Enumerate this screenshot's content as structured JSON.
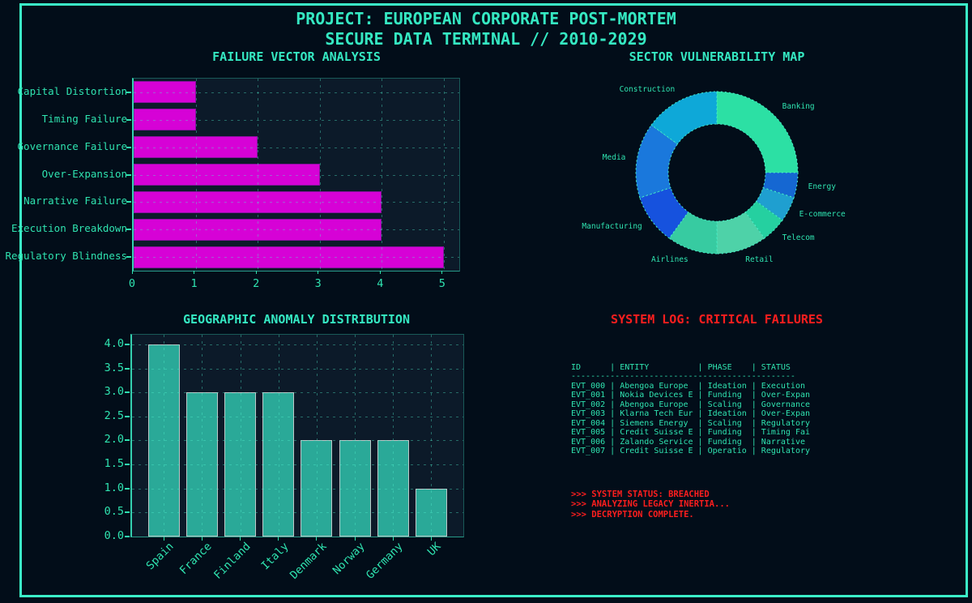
{
  "header": {
    "title_line1": "PROJECT: EUROPEAN CORPORATE POST-MORTEM",
    "title_line2": "SECURE DATA TERMINAL // 2010-2029"
  },
  "colors": {
    "background": "#020d19",
    "plot_background": "#0c1a29",
    "frame_teal": "#3bf0c8",
    "text_teal": "#2fe3b0",
    "title_teal": "#35e8c2",
    "alert_red": "#ff1e1e",
    "failure_bar_fill": "#d602d6",
    "failure_bar_edge": "#8a10a0",
    "geo_bar_fill": "#2aa998",
    "geo_bar_edge": "#bcc8c8",
    "wedge_edge": "#46f0c8"
  },
  "chart_data": [
    {
      "type": "bar",
      "orientation": "horizontal",
      "title": "FAILURE VECTOR ANALYSIS",
      "categories": [
        "Capital Distortion",
        "Timing Failure",
        "Governance Failure",
        "Over-Expansion",
        "Narrative Failure",
        "Execution Breakdown",
        "Regulatory Blindness"
      ],
      "values": [
        1,
        1,
        2,
        3,
        4,
        4,
        5
      ],
      "xticks": [
        0,
        1,
        2,
        3,
        4,
        5
      ],
      "xlim": [
        0,
        5.25
      ],
      "grid": true,
      "legend": "none"
    },
    {
      "type": "pie",
      "donut": true,
      "title": "SECTOR VULNERABILITY MAP",
      "labels": [
        "Banking",
        "Energy",
        "E-commerce",
        "Telecom",
        "Retail",
        "Airlines",
        "Manufacturing",
        "Media",
        "Construction"
      ],
      "values": [
        5,
        1,
        1,
        1,
        2,
        2,
        2,
        3,
        3
      ],
      "colors": [
        "#2ce0a4",
        "#1567d2",
        "#1f9fd0",
        "#25d0a0",
        "#4ed2a8",
        "#37cba1",
        "#1652de",
        "#1a78dc",
        "#0ea8d8"
      ],
      "start_angle": "top",
      "direction": "clockwise",
      "legend": "none"
    },
    {
      "type": "bar",
      "orientation": "vertical",
      "title": "GEOGRAPHIC ANOMALY DISTRIBUTION",
      "categories": [
        "Spain",
        "France",
        "Finland",
        "Italy",
        "Denmark",
        "Norway",
        "Germany",
        "UK"
      ],
      "values": [
        4,
        3,
        3,
        3,
        2,
        2,
        2,
        1
      ],
      "yticks": [
        0,
        0.5,
        1,
        1.5,
        2,
        2.5,
        3,
        3.5,
        4
      ],
      "ylim": [
        0,
        4.2
      ],
      "grid": true,
      "legend": "none"
    },
    {
      "type": "table",
      "title": "SYSTEM LOG: CRITICAL FAILURES",
      "columns": [
        "ID",
        "ENTITY",
        "PHASE",
        "STATUS"
      ],
      "rows": [
        [
          "EVT_000",
          "Abengoa Europe",
          "Ideation",
          "Execution"
        ],
        [
          "EVT_001",
          "Nokia Devices E",
          "Funding",
          "Over-Expan"
        ],
        [
          "EVT_002",
          "Abengoa Europe",
          "Scaling",
          "Governance"
        ],
        [
          "EVT_003",
          "Klarna Tech Eur",
          "Ideation",
          "Over-Expan"
        ],
        [
          "EVT_004",
          "Siemens Energy",
          "Scaling",
          "Regulatory"
        ],
        [
          "EVT_005",
          "Credit Suisse E",
          "Funding",
          "Timing Fai"
        ],
        [
          "EVT_006",
          "Zalando Service",
          "Funding",
          "Narrative"
        ],
        [
          "EVT_007",
          "Credit Suisse E",
          "Operatio",
          "Regulatory"
        ]
      ],
      "status_lines": [
        ">>> SYSTEM STATUS: BREACHED",
        ">>> ANALYZING LEGACY INERTIA...",
        ">>> DECRYPTION COMPLETE."
      ]
    }
  ]
}
